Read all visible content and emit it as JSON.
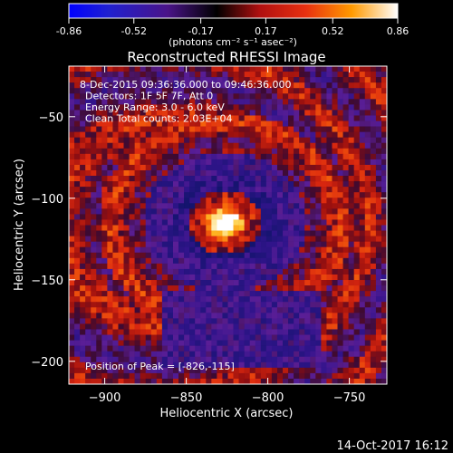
{
  "colorbar": {
    "ticks": [
      "-0.86",
      "-0.52",
      "-0.17",
      "0.17",
      "0.52",
      "0.86"
    ],
    "min": -0.86,
    "max": 0.86,
    "units": "(photons cm⁻² s⁻¹ asec⁻²)",
    "colors": [
      "#0000ff",
      "#000000",
      "#e81010",
      "#ff8c00",
      "#ffffff"
    ]
  },
  "chart_data": {
    "type": "heatmap",
    "title": "Reconstructed RHESSI Image",
    "xlabel": "Heliocentric X (arcsec)",
    "ylabel": "Heliocentric Y (arcsec)",
    "xlim": [
      -922,
      -727
    ],
    "ylim": [
      -214,
      -19
    ],
    "x_ticks": [
      -900,
      -850,
      -800,
      -750
    ],
    "y_ticks": [
      -200,
      -150,
      -100,
      -50
    ],
    "annotations": [
      "8-Dec-2015 09:36:36.000 to 09:46:36.000",
      "Detectors: 1F 5F 7F, Att 0",
      "Energy Range: 3.0 - 6.0 keV",
      "Clean     Total counts: 2.03E+04"
    ],
    "peak_label": "Position of Peak = [-826,-115]",
    "peak": [
      -826,
      -115
    ],
    "timestamp": "14-Oct-2017 16:12"
  }
}
